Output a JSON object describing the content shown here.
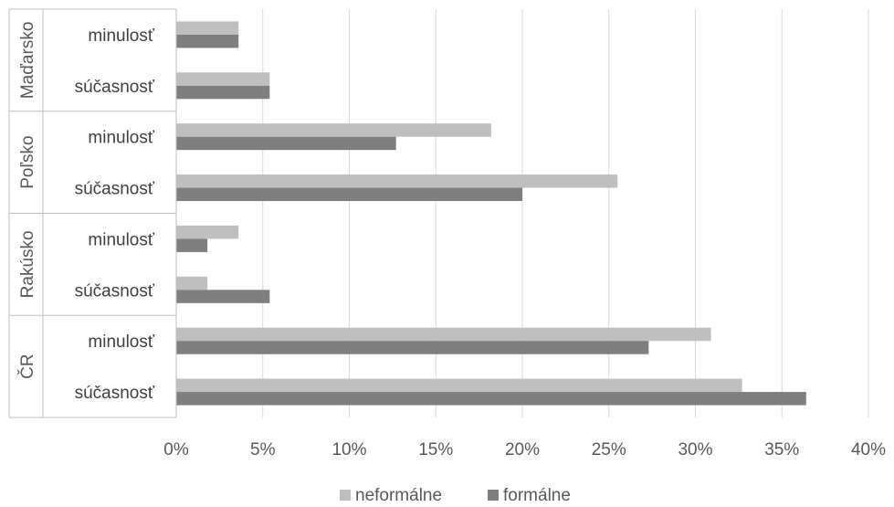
{
  "chart_data": {
    "type": "bar",
    "orientation": "horizontal",
    "groups": [
      {
        "label": "Maďarsko",
        "categories": [
          "minulosť",
          "súčasnosť"
        ]
      },
      {
        "label": "Poľsko",
        "categories": [
          "minulosť",
          "súčasnosť"
        ]
      },
      {
        "label": "Rakúsko",
        "categories": [
          "minulosť",
          "súčasnosť"
        ]
      },
      {
        "label": "ČR",
        "categories": [
          "minulosť",
          "súčasnosť"
        ]
      }
    ],
    "series": [
      {
        "name": "neformálne",
        "color": "#bfbfbf",
        "values": [
          3.6,
          5.4,
          18.2,
          25.5,
          3.6,
          1.8,
          30.9,
          32.7
        ]
      },
      {
        "name": "formálne",
        "color": "#7f7f7f",
        "values": [
          3.6,
          5.4,
          12.7,
          20.0,
          1.8,
          5.4,
          27.3,
          36.4
        ]
      }
    ],
    "xlim": [
      0,
      40
    ],
    "xticks": [
      "0%",
      "5%",
      "10%",
      "15%",
      "20%",
      "25%",
      "30%",
      "35%",
      "40%"
    ],
    "grid": true,
    "legend_position": "bottom"
  }
}
